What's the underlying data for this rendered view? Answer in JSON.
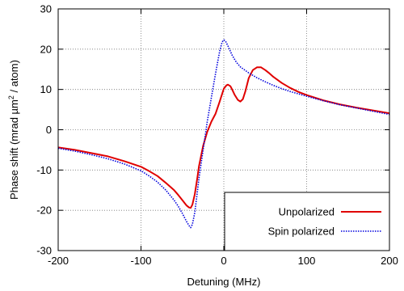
{
  "chart_data": {
    "type": "line",
    "xlabel": "Detuning (MHz)",
    "ylabel_parts": {
      "before": "Phase shift (mrad µm",
      "sup": "2",
      "after": " / atom)"
    },
    "xlim": [
      -200,
      200
    ],
    "ylim": [
      -30,
      30
    ],
    "xticks": [
      -200,
      -100,
      0,
      100,
      200
    ],
    "yticks": [
      -30,
      -20,
      -10,
      0,
      10,
      20,
      30
    ],
    "grid": true,
    "legend_position": "bottom-right",
    "series": [
      {
        "name": "Unpolarized",
        "color": "#e00000",
        "style": "solid",
        "x": [
          -200,
          -180,
          -160,
          -140,
          -120,
          -100,
          -90,
          -80,
          -70,
          -60,
          -55,
          -50,
          -45,
          -42,
          -40,
          -38,
          -35,
          -32,
          -30,
          -25,
          -20,
          -15,
          -10,
          -5,
          0,
          3,
          5,
          8,
          10,
          13,
          17,
          20,
          23,
          26,
          30,
          35,
          40,
          45,
          50,
          55,
          60,
          70,
          80,
          90,
          100,
          120,
          140,
          160,
          180,
          200
        ],
        "y": [
          -4.4,
          -5.0,
          -5.8,
          -6.6,
          -7.8,
          -9.2,
          -10.3,
          -11.5,
          -13.2,
          -15.0,
          -16.2,
          -17.5,
          -18.8,
          -19.3,
          -19.4,
          -18.6,
          -16.0,
          -12.0,
          -9.0,
          -4.0,
          -0.5,
          2.0,
          4.0,
          7.0,
          10.2,
          11.0,
          11.2,
          10.8,
          10.0,
          8.7,
          7.4,
          7.0,
          7.6,
          9.5,
          12.8,
          14.8,
          15.5,
          15.5,
          14.8,
          14.0,
          13.1,
          11.6,
          10.4,
          9.4,
          8.6,
          7.3,
          6.3,
          5.5,
          4.8,
          4.1
        ]
      },
      {
        "name": "Spin polarized",
        "color": "#0000dd",
        "style": "dotted",
        "x": [
          -200,
          -180,
          -160,
          -140,
          -120,
          -100,
          -90,
          -80,
          -70,
          -60,
          -55,
          -50,
          -45,
          -42,
          -40,
          -38,
          -35,
          -32,
          -30,
          -25,
          -20,
          -15,
          -10,
          -5,
          -2,
          0,
          2,
          5,
          10,
          15,
          20,
          30,
          40,
          50,
          60,
          70,
          80,
          90,
          100,
          120,
          140,
          160,
          180,
          200
        ],
        "y": [
          -4.6,
          -5.3,
          -6.2,
          -7.2,
          -8.5,
          -10.2,
          -11.5,
          -13.0,
          -15.0,
          -17.5,
          -19.0,
          -20.8,
          -22.8,
          -23.8,
          -24.3,
          -23.5,
          -20.5,
          -15.5,
          -12.0,
          -5.0,
          2.0,
          8.0,
          14.0,
          19.5,
          21.8,
          22.3,
          22.0,
          20.8,
          18.5,
          16.8,
          15.6,
          14.1,
          12.9,
          11.9,
          11.0,
          10.2,
          9.5,
          8.9,
          8.3,
          7.2,
          6.2,
          5.4,
          4.6,
          3.8
        ]
      }
    ]
  }
}
